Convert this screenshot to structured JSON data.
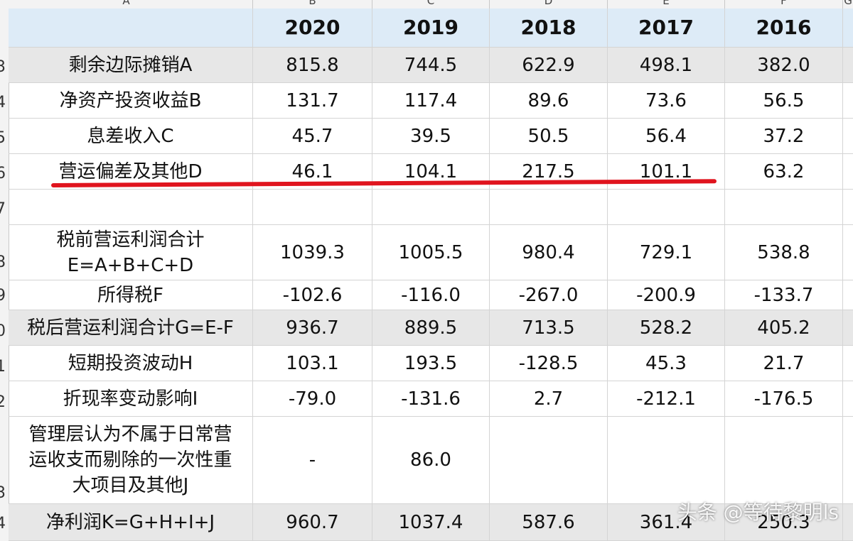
{
  "column_letters": [
    "A",
    "B",
    "C",
    "D",
    "E",
    "F",
    "G"
  ],
  "row_numbers": [
    "3",
    "4",
    "5",
    "6",
    "7",
    "8",
    "9",
    "0",
    "1",
    "2",
    "3",
    "4"
  ],
  "header": {
    "label": "",
    "years": [
      "2020",
      "2019",
      "2018",
      "2017",
      "2016"
    ]
  },
  "rows": [
    {
      "label": "剩余边际摊销A",
      "values": [
        "815.8",
        "744.5",
        "622.9",
        "498.1",
        "382.0"
      ]
    },
    {
      "label": "净资产投资收益B",
      "values": [
        "131.7",
        "117.4",
        "89.6",
        "73.6",
        "56.5"
      ]
    },
    {
      "label": "息差收入C",
      "values": [
        "45.7",
        "39.5",
        "50.5",
        "56.4",
        "37.2"
      ]
    },
    {
      "label": "营运偏差及其他D",
      "values": [
        "46.1",
        "104.1",
        "217.5",
        "101.1",
        "63.2"
      ]
    },
    {
      "label": "",
      "values": [
        "",
        "",
        "",
        "",
        ""
      ]
    },
    {
      "label": "税前营运利润合计\nE=A+B+C+D",
      "values": [
        "1039.3",
        "1005.5",
        "980.4",
        "729.1",
        "538.8"
      ]
    },
    {
      "label": "所得税F",
      "values": [
        "-102.6",
        "-116.0",
        "-267.0",
        "-200.9",
        "-133.7"
      ]
    },
    {
      "label": "税后营运利润合计G=E-F",
      "values": [
        "936.7",
        "889.5",
        "713.5",
        "528.2",
        "405.2"
      ]
    },
    {
      "label": "短期投资波动H",
      "values": [
        "103.1",
        "193.5",
        "-128.5",
        "45.3",
        "21.7"
      ]
    },
    {
      "label": "折现率变动影响I",
      "values": [
        "-79.0",
        "-131.6",
        "2.7",
        "-212.1",
        "-176.5"
      ]
    },
    {
      "label": "管理层认为不属于日常营\n运收支而剔除的一次性重\n大项目及其他J",
      "values": [
        "-",
        "86.0",
        "",
        "",
        ""
      ]
    },
    {
      "label": "净利润K=G+H+I+J",
      "values": [
        "960.7",
        "1037.4",
        "587.6",
        "361.4",
        "250.3"
      ]
    }
  ],
  "watermark": "头条 @等待黎明ls",
  "colors": {
    "header_bg": "#ddebf7",
    "shade_bg": "#e7e7e7",
    "underline": "#e0141e"
  }
}
